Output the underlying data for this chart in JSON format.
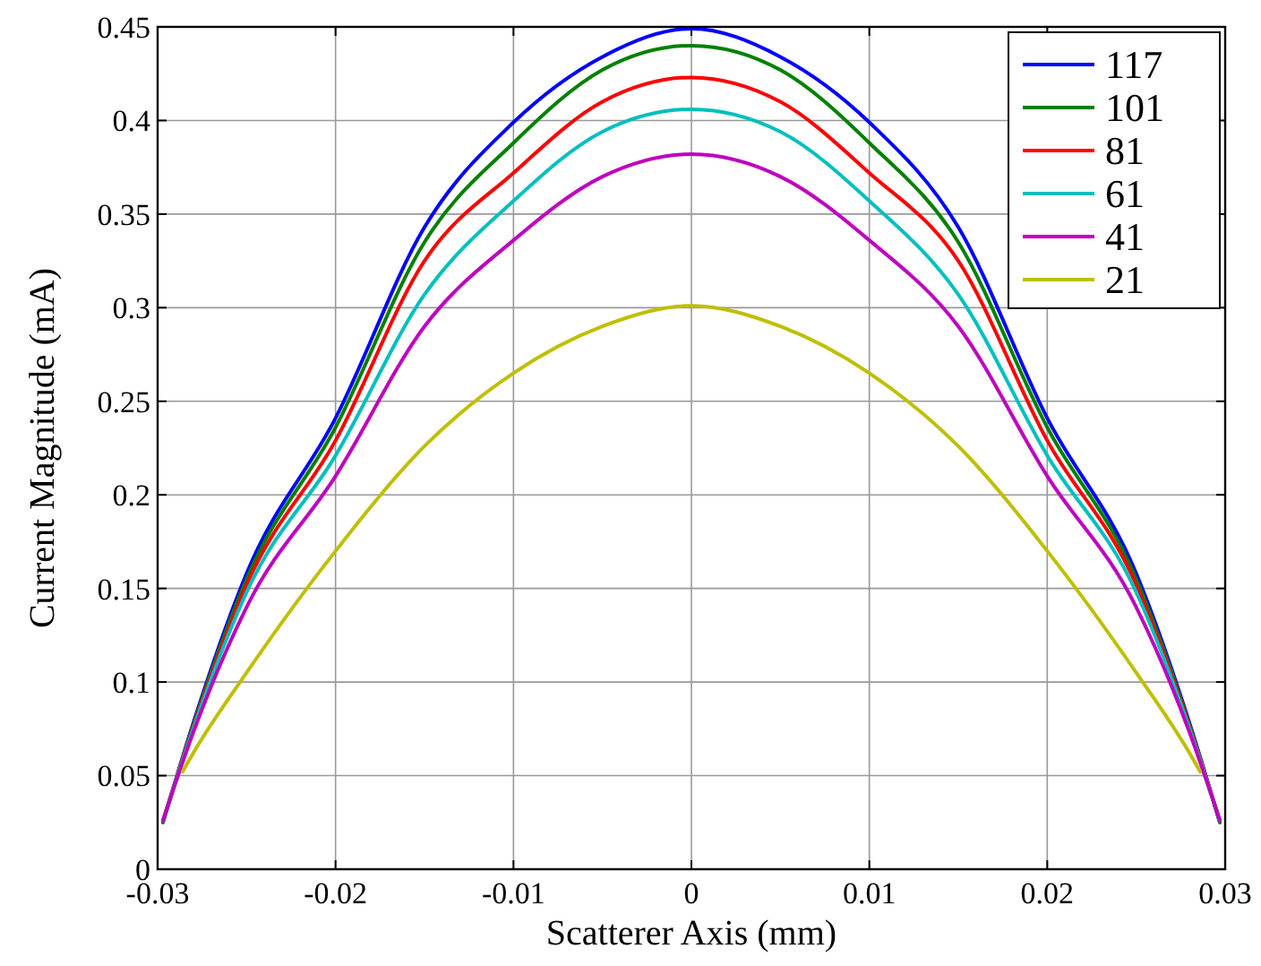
{
  "chart_data": {
    "type": "line",
    "xlabel": "Scatterer Axis (mm)",
    "ylabel": "Current Magnitude (mA)",
    "xlim": [
      -0.03,
      0.03
    ],
    "ylim": [
      0,
      0.45
    ],
    "xticks": [
      -0.03,
      -0.02,
      -0.01,
      0,
      0.01,
      0.02,
      0.03
    ],
    "yticks": [
      0,
      0.05,
      0.1,
      0.15,
      0.2,
      0.25,
      0.3,
      0.35,
      0.4,
      0.45
    ],
    "grid": true,
    "legend": "top right",
    "line_style": "solid",
    "x": [
      -0.0297,
      -0.028,
      -0.025,
      -0.02,
      -0.015,
      -0.01,
      -0.005,
      0,
      0.005,
      0.01,
      0.015,
      0.02,
      0.025,
      0.028,
      0.0297
    ],
    "series": [
      {
        "name": "117",
        "color": "#0000ff",
        "values": [
          0.025,
          0.078,
          0.158,
          0.241,
          0.343,
          0.399,
          0.434,
          0.449,
          0.434,
          0.399,
          0.343,
          0.241,
          0.158,
          0.078,
          0.025
        ]
      },
      {
        "name": "101",
        "color": "#008000",
        "values": [
          0.025,
          0.077,
          0.155,
          0.236,
          0.335,
          0.388,
          0.427,
          0.44,
          0.427,
          0.388,
          0.335,
          0.236,
          0.155,
          0.077,
          0.025
        ]
      },
      {
        "name": "81",
        "color": "#ff0000",
        "values": [
          0.026,
          0.076,
          0.152,
          0.229,
          0.325,
          0.372,
          0.41,
          0.423,
          0.41,
          0.372,
          0.325,
          0.229,
          0.152,
          0.076,
          0.026
        ]
      },
      {
        "name": "61",
        "color": "#00bfbf",
        "values": [
          0.026,
          0.075,
          0.148,
          0.221,
          0.307,
          0.357,
          0.394,
          0.406,
          0.394,
          0.357,
          0.307,
          0.221,
          0.148,
          0.075,
          0.026
        ]
      },
      {
        "name": "41",
        "color": "#bf00bf",
        "values": [
          0.026,
          0.073,
          0.14,
          0.21,
          0.29,
          0.336,
          0.37,
          0.382,
          0.37,
          0.336,
          0.29,
          0.21,
          0.14,
          0.073,
          0.026
        ]
      },
      {
        "name": "21",
        "color": "#bfbf00",
        "x": [
          -0.0286,
          -0.028,
          -0.025,
          -0.02,
          -0.015,
          -0.01,
          -0.005,
          0,
          0.005,
          0.01,
          0.015,
          0.02,
          0.025,
          0.028,
          0.0286
        ],
        "values": [
          0.052,
          0.062,
          0.105,
          0.17,
          0.226,
          0.265,
          0.29,
          0.301,
          0.29,
          0.265,
          0.226,
          0.17,
          0.105,
          0.062,
          0.052
        ]
      }
    ]
  }
}
